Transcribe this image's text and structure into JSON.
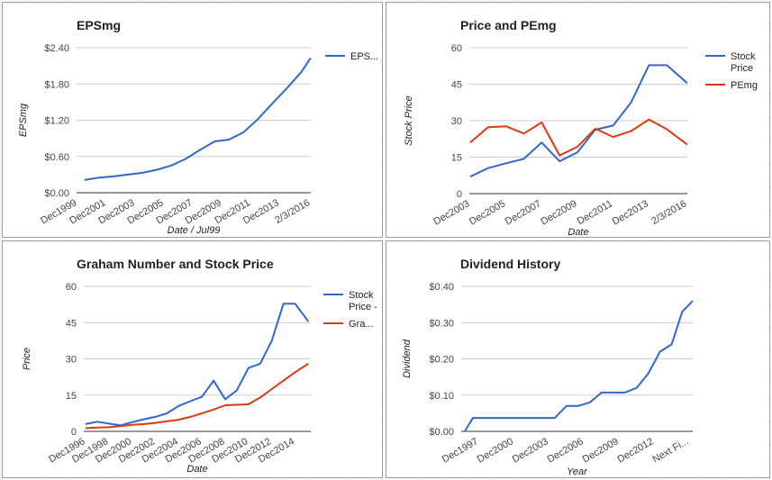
{
  "chart_data": [
    {
      "type": "line",
      "title": "EPSmg",
      "xlabel": "Date / Jul99",
      "ylabel": "EPSmg",
      "yticks": [
        {
          "v": 0,
          "label": "$0.00"
        },
        {
          "v": 0.6,
          "label": "$0.60"
        },
        {
          "v": 1.2,
          "label": "$1.20"
        },
        {
          "v": 1.8,
          "label": "$1.80"
        },
        {
          "v": 2.4,
          "label": "$2.40"
        }
      ],
      "ylim": [
        0,
        2.4
      ],
      "xlim": [
        1999.9,
        2016.1
      ],
      "xticks": [
        {
          "v": 1999.95,
          "label": "Dec1999"
        },
        {
          "v": 2001.95,
          "label": "Dec2001"
        },
        {
          "v": 2003.95,
          "label": "Dec2003"
        },
        {
          "v": 2005.95,
          "label": "Dec2005"
        },
        {
          "v": 2007.95,
          "label": "Dec2007"
        },
        {
          "v": 2009.95,
          "label": "Dec2009"
        },
        {
          "v": 2011.95,
          "label": "Dec2011"
        },
        {
          "v": 2013.95,
          "label": "Dec2013"
        },
        {
          "v": 2016.09,
          "label": "2/3/2016"
        }
      ],
      "series": [
        {
          "name": "EPS...",
          "color": "#3366cc",
          "x": [
            2000.45,
            2001.45,
            2002.45,
            2003.45,
            2004.45,
            2005.45,
            2006.45,
            2007.45,
            2008.45,
            2009.45,
            2010.45,
            2011.45,
            2012.45,
            2013.45,
            2014.45,
            2015.45,
            2016.09
          ],
          "y": [
            0.21,
            0.25,
            0.27,
            0.3,
            0.33,
            0.38,
            0.45,
            0.56,
            0.71,
            0.85,
            0.88,
            1.0,
            1.22,
            1.48,
            1.73,
            2.0,
            2.23
          ]
        }
      ],
      "legend": "right"
    },
    {
      "type": "line",
      "title": "Price and PEmg",
      "xlabel": "Date",
      "ylabel": "Stock Price",
      "yticks": [
        {
          "v": 0,
          "label": "0"
        },
        {
          "v": 15,
          "label": "15"
        },
        {
          "v": 30,
          "label": "30"
        },
        {
          "v": 45,
          "label": "45"
        },
        {
          "v": 60,
          "label": "60"
        }
      ],
      "ylim": [
        0,
        60
      ],
      "xlim": [
        2003.9,
        2016.1
      ],
      "xticks": [
        {
          "v": 2003.95,
          "label": "Dec2003"
        },
        {
          "v": 2005.95,
          "label": "Dec2005"
        },
        {
          "v": 2007.95,
          "label": "Dec2007"
        },
        {
          "v": 2009.95,
          "label": "Dec2009"
        },
        {
          "v": 2011.95,
          "label": "Dec2011"
        },
        {
          "v": 2013.95,
          "label": "Dec2013"
        },
        {
          "v": 2016.09,
          "label": "2/3/2016"
        }
      ],
      "series": [
        {
          "name": "Stock Price",
          "color": "#3366cc",
          "x": [
            2003.95,
            2004.95,
            2005.95,
            2006.95,
            2007.95,
            2008.95,
            2009.95,
            2010.95,
            2011.95,
            2012.95,
            2013.95,
            2014.95,
            2016.09
          ],
          "y": [
            7.0,
            10.5,
            12.5,
            14.3,
            21.0,
            13.3,
            17.0,
            26.3,
            28.0,
            37.5,
            52.8,
            52.8,
            45.5
          ]
        },
        {
          "name": "PEmg",
          "color": "#dc3912",
          "x": [
            2003.95,
            2004.95,
            2005.95,
            2006.95,
            2007.95,
            2008.95,
            2009.95,
            2010.95,
            2011.95,
            2012.95,
            2013.95,
            2014.95,
            2016.09
          ],
          "y": [
            21.0,
            27.3,
            27.7,
            24.7,
            29.3,
            15.7,
            19.3,
            26.7,
            23.3,
            25.7,
            30.5,
            26.5,
            20.2
          ]
        }
      ],
      "legend": "right"
    },
    {
      "type": "line",
      "title": "Graham Number and Stock Price",
      "xlabel": "Date",
      "ylabel": "Price",
      "yticks": [
        {
          "v": 0,
          "label": "0"
        },
        {
          "v": 15,
          "label": "15"
        },
        {
          "v": 30,
          "label": "30"
        },
        {
          "v": 45,
          "label": "45"
        },
        {
          "v": 60,
          "label": "60"
        }
      ],
      "ylim": [
        0,
        60
      ],
      "xlim": [
        1996.8,
        2016.3
      ],
      "xticks": [
        {
          "v": 1996.95,
          "label": "Dec1996"
        },
        {
          "v": 1998.95,
          "label": "Dec1998"
        },
        {
          "v": 2000.95,
          "label": "Dec2000"
        },
        {
          "v": 2002.95,
          "label": "Dec2002"
        },
        {
          "v": 2004.95,
          "label": "Dec2004"
        },
        {
          "v": 2006.95,
          "label": "Dec2006"
        },
        {
          "v": 2008.95,
          "label": "Dec2008"
        },
        {
          "v": 2010.95,
          "label": "Dec2010"
        },
        {
          "v": 2012.95,
          "label": "Dec2012"
        },
        {
          "v": 2014.95,
          "label": "Dec2014"
        }
      ],
      "series": [
        {
          "name": "Stock Price -",
          "color": "#3366cc",
          "x": [
            1996.95,
            1997.95,
            1998.95,
            1999.95,
            2000.95,
            2001.95,
            2002.95,
            2003.95,
            2004.95,
            2005.95,
            2006.95,
            2007.95,
            2008.95,
            2009.95,
            2010.95,
            2011.95,
            2012.95,
            2013.95,
            2014.95,
            2016.09
          ],
          "y": [
            3.0,
            4.0,
            3.2,
            2.5,
            3.8,
            5.0,
            6.0,
            7.5,
            10.5,
            12.5,
            14.3,
            21.0,
            13.3,
            17.0,
            26.3,
            28.0,
            37.5,
            52.8,
            52.8,
            45.5
          ]
        },
        {
          "name": "Gra...",
          "color": "#dc3912",
          "x": [
            1996.95,
            1997.95,
            1998.95,
            1999.95,
            2000.95,
            2001.95,
            2002.95,
            2003.95,
            2004.95,
            2005.95,
            2006.95,
            2007.95,
            2008.95,
            2009.95,
            2010.95,
            2011.95,
            2012.95,
            2013.95,
            2014.95,
            2016.09
          ],
          "y": [
            1.3,
            1.6,
            1.7,
            2.2,
            2.7,
            3.0,
            3.5,
            4.2,
            4.8,
            6.0,
            7.5,
            9.0,
            10.8,
            11.0,
            11.2,
            14.0,
            17.5,
            21.0,
            24.5,
            28.0
          ]
        }
      ],
      "legend": "right"
    },
    {
      "type": "line",
      "title": "Dividend History",
      "xlabel": "Year",
      "ylabel": "Dividend",
      "yticks": [
        {
          "v": 0,
          "label": "$0.00"
        },
        {
          "v": 0.1,
          "label": "$0.10"
        },
        {
          "v": 0.2,
          "label": "$0.20"
        },
        {
          "v": 0.3,
          "label": "$0.30"
        },
        {
          "v": 0.4,
          "label": "$0.40"
        }
      ],
      "ylim": [
        0,
        0.4
      ],
      "xlim": [
        1996.0,
        2015.8
      ],
      "xticks": [
        {
          "v": 1997.5,
          "label": "Dec1997"
        },
        {
          "v": 2000.5,
          "label": "Dec2000"
        },
        {
          "v": 2003.5,
          "label": "Dec2003"
        },
        {
          "v": 2006.5,
          "label": "Dec2006"
        },
        {
          "v": 2009.5,
          "label": "Dec2009"
        },
        {
          "v": 2012.5,
          "label": "Dec2012"
        },
        {
          "v": 2015.5,
          "label": "Next Fi..."
        }
      ],
      "series": [
        {
          "name": "Dividend",
          "color": "#3366cc",
          "x": [
            1996.3,
            1997.0,
            1998.0,
            1999.0,
            2000.0,
            2001.0,
            2002.0,
            2003.0,
            2004.0,
            2005.0,
            2006.0,
            2007.0,
            2008.0,
            2009.0,
            2010.0,
            2011.0,
            2012.0,
            2013.0,
            2014.0,
            2014.9,
            2015.8
          ],
          "y": [
            0.0,
            0.037,
            0.037,
            0.037,
            0.037,
            0.037,
            0.037,
            0.037,
            0.037,
            0.07,
            0.07,
            0.08,
            0.107,
            0.107,
            0.107,
            0.12,
            0.16,
            0.22,
            0.24,
            0.33,
            0.36
          ]
        }
      ],
      "legend": "none"
    }
  ]
}
